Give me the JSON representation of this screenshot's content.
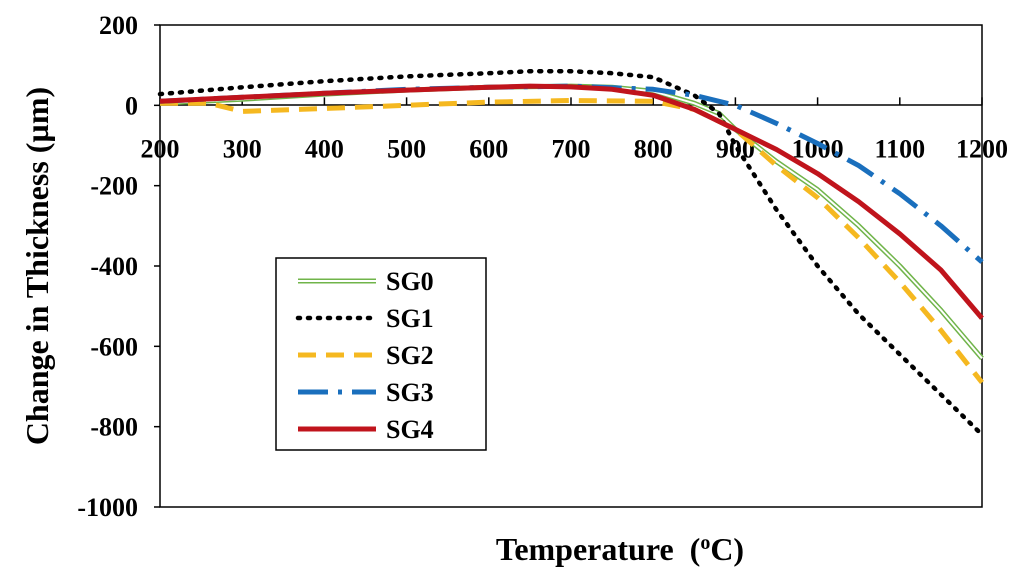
{
  "chart_data": {
    "type": "line",
    "title": "",
    "xlabel": "Temperature",
    "xlabel_unit": "(oC)",
    "ylabel": "Change in Thickness (µm)",
    "xlim": [
      200,
      1200
    ],
    "ylim": [
      -1000,
      200
    ],
    "xticks": [
      "200",
      "300",
      "400",
      "500",
      "600",
      "700",
      "800",
      "900",
      "1000",
      "1100",
      "1200"
    ],
    "yticks": [
      "200",
      "0",
      "-200",
      "-400",
      "-600",
      "-800",
      "-1000"
    ],
    "legend_position": "lower-left",
    "series": [
      {
        "name": "SG0",
        "color": "#70b44a",
        "style": "double-line",
        "x": [
          200,
          300,
          400,
          500,
          600,
          700,
          750,
          800,
          850,
          880,
          900,
          950,
          1000,
          1050,
          1100,
          1150,
          1200
        ],
        "y": [
          5,
          15,
          28,
          38,
          45,
          48,
          45,
          35,
          5,
          -20,
          -60,
          -140,
          -210,
          -300,
          -400,
          -510,
          -630
        ]
      },
      {
        "name": "SG1",
        "color": "#000000",
        "style": "dotted",
        "x": [
          200,
          300,
          400,
          500,
          600,
          650,
          700,
          750,
          800,
          850,
          880,
          900,
          950,
          1000,
          1050,
          1100,
          1150,
          1200
        ],
        "y": [
          28,
          45,
          60,
          72,
          80,
          85,
          85,
          80,
          70,
          25,
          -20,
          -100,
          -260,
          -400,
          -520,
          -620,
          -720,
          -820
        ]
      },
      {
        "name": "SG2",
        "color": "#f5b820",
        "style": "dashed",
        "x": [
          200,
          260,
          300,
          400,
          500,
          600,
          700,
          800,
          850,
          900,
          950,
          1000,
          1050,
          1100,
          1150,
          1200
        ],
        "y": [
          5,
          5,
          -15,
          -8,
          0,
          8,
          12,
          10,
          -10,
          -60,
          -150,
          -230,
          -330,
          -440,
          -560,
          -690
        ]
      },
      {
        "name": "SG3",
        "color": "#1a6fbd",
        "style": "dash-dot",
        "x": [
          200,
          300,
          400,
          500,
          600,
          700,
          800,
          850,
          900,
          950,
          1000,
          1050,
          1100,
          1150,
          1200
        ],
        "y": [
          10,
          20,
          30,
          40,
          45,
          48,
          40,
          25,
          0,
          -45,
          -95,
          -150,
          -220,
          -300,
          -390
        ]
      },
      {
        "name": "SG4",
        "color": "#c0141c",
        "style": "solid",
        "x": [
          200,
          300,
          400,
          500,
          600,
          650,
          700,
          750,
          800,
          850,
          900,
          950,
          1000,
          1050,
          1100,
          1150,
          1200
        ],
        "y": [
          10,
          20,
          30,
          38,
          45,
          48,
          46,
          40,
          25,
          -10,
          -60,
          -110,
          -170,
          -240,
          -320,
          -410,
          -530
        ]
      }
    ]
  }
}
